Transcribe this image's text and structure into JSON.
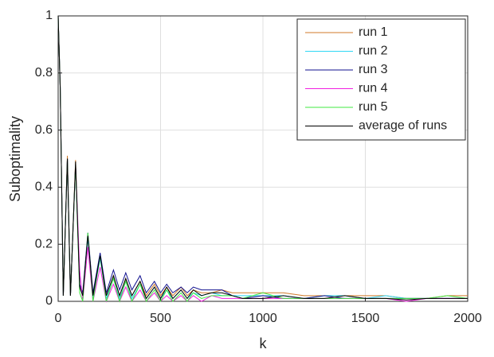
{
  "chart_data": {
    "type": "line",
    "xlabel": "k",
    "ylabel": "Suboptimality",
    "x": [
      0,
      10,
      25,
      45,
      60,
      85,
      105,
      120,
      145,
      170,
      205,
      235,
      270,
      300,
      330,
      360,
      400,
      430,
      470,
      500,
      530,
      560,
      600,
      630,
      660,
      700,
      750,
      800,
      850,
      900,
      1000,
      1100,
      1200,
      1300,
      1400,
      1500,
      1600,
      1700,
      1800,
      1900,
      2000
    ],
    "series": [
      {
        "name": "run 1",
        "color": "#d07a2a",
        "values": [
          1,
          0.75,
          0.02,
          0.51,
          0.02,
          0.495,
          0.06,
          0.02,
          0.23,
          0.02,
          0.16,
          0.02,
          0.09,
          0.02,
          0.08,
          0.02,
          0.07,
          0.02,
          0.06,
          0.02,
          0.05,
          0.02,
          0.05,
          0.02,
          0.04,
          0.03,
          0.03,
          0.04,
          0.03,
          0.03,
          0.03,
          0.03,
          0.02,
          0.02,
          0.02,
          0.02,
          0.02,
          0.01,
          0.01,
          0.02,
          0.02
        ]
      },
      {
        "name": "run 2",
        "color": "#2ed8f5",
        "values": [
          1,
          0.75,
          0.02,
          0.5,
          0.02,
          0.48,
          0.05,
          0.02,
          0.22,
          0.01,
          0.15,
          0.01,
          0.08,
          0.01,
          0.07,
          0.01,
          0.06,
          0.01,
          0.05,
          0.01,
          0.04,
          0.01,
          0.04,
          0.01,
          0.03,
          0.02,
          0.03,
          0.02,
          0.02,
          0.02,
          0.02,
          0.02,
          0.01,
          0.02,
          0.02,
          0.01,
          0.02,
          0.01,
          0.01,
          0.01,
          0.01
        ]
      },
      {
        "name": "run 3",
        "color": "#10108f",
        "values": [
          1,
          0.75,
          0.02,
          0.5,
          0.02,
          0.48,
          0.06,
          0.03,
          0.24,
          0.03,
          0.17,
          0.03,
          0.11,
          0.04,
          0.1,
          0.04,
          0.09,
          0.03,
          0.07,
          0.03,
          0.06,
          0.03,
          0.05,
          0.03,
          0.05,
          0.04,
          0.04,
          0.04,
          0.02,
          0.01,
          0.02,
          0.01,
          0.01,
          0.02,
          0.01,
          0.01,
          0.01,
          0.01,
          0.01,
          0.01,
          0.01
        ]
      },
      {
        "name": "run 4",
        "color": "#f020e0",
        "values": [
          1,
          0.75,
          0.02,
          0.5,
          0.02,
          0.48,
          0.11,
          0,
          0.19,
          0,
          0.12,
          0,
          0.06,
          0,
          0.05,
          0,
          0.04,
          0,
          0.03,
          0,
          0.02,
          0,
          0.02,
          0,
          0.02,
          0,
          0.02,
          0.01,
          0.01,
          0.01,
          0.01,
          0.01,
          0.01,
          0.01,
          0.01,
          0.01,
          0.01,
          0,
          0.01,
          0.01,
          0.01
        ]
      },
      {
        "name": "run 5",
        "color": "#40e840",
        "values": [
          1,
          0.75,
          0.02,
          0.5,
          0.02,
          0.48,
          0.03,
          0,
          0.24,
          0,
          0.16,
          0,
          0.08,
          0,
          0.07,
          0,
          0.06,
          0,
          0.04,
          0,
          0.04,
          0,
          0.03,
          0,
          0.03,
          0.01,
          0.02,
          0.02,
          0.02,
          0.01,
          0.03,
          0.01,
          0.01,
          0.01,
          0.01,
          0.01,
          0.01,
          0.01,
          0.01,
          0.02,
          0.01
        ]
      },
      {
        "name": "average of runs",
        "color": "#000000",
        "values": [
          1,
          0.75,
          0.02,
          0.5,
          0.02,
          0.49,
          0.05,
          0.02,
          0.23,
          0.02,
          0.16,
          0.02,
          0.09,
          0.02,
          0.08,
          0.02,
          0.07,
          0.01,
          0.05,
          0.01,
          0.05,
          0.01,
          0.04,
          0.01,
          0.04,
          0.02,
          0.03,
          0.03,
          0.02,
          0.01,
          0.01,
          0.02,
          0.01,
          0.01,
          0.02,
          0.01,
          0.01,
          0.005,
          0.01,
          0.01,
          0.01
        ]
      }
    ],
    "xlim": [
      0,
      2000
    ],
    "xticks": [
      0,
      500,
      1000,
      1500,
      2000
    ],
    "ylim": [
      0,
      1
    ],
    "yticks": [
      0,
      0.2,
      0.4,
      0.6,
      0.8,
      1
    ],
    "grid": true,
    "legend": "top-right"
  }
}
